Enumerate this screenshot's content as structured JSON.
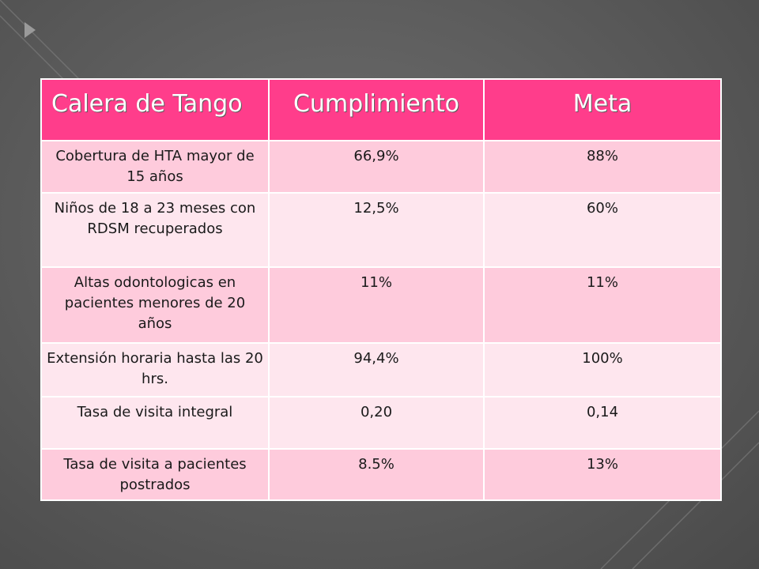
{
  "table": {
    "headers": [
      "Calera de Tango",
      "Cumplimiento",
      "Meta"
    ],
    "rows": [
      {
        "indicador": "Cobertura de HTA mayor de 15 años",
        "cumplimiento": "66,9%",
        "meta": "88%"
      },
      {
        "indicador": "Niños de 18 a 23 meses con RDSM recuperados",
        "cumplimiento": "12,5%",
        "meta": "60%"
      },
      {
        "indicador": "Altas odontologicas en pacientes menores de 20 años",
        "cumplimiento": "11%",
        "meta": "11%"
      },
      {
        "indicador": "Extensión horaria hasta las 20 hrs.",
        "cumplimiento": "94,4%",
        "meta": "100%"
      },
      {
        "indicador": "Tasa de visita integral",
        "cumplimiento": "0,20",
        "meta": "0,14"
      },
      {
        "indicador": "Tasa de visita a pacientes postrados",
        "cumplimiento": "8.5%",
        "meta": "13%"
      }
    ]
  },
  "colors": {
    "header_bg": "#ff3d8b",
    "row_dark": "#fecbdc",
    "row_light": "#fee6ee",
    "slide_bg": "#5e5e5e"
  }
}
